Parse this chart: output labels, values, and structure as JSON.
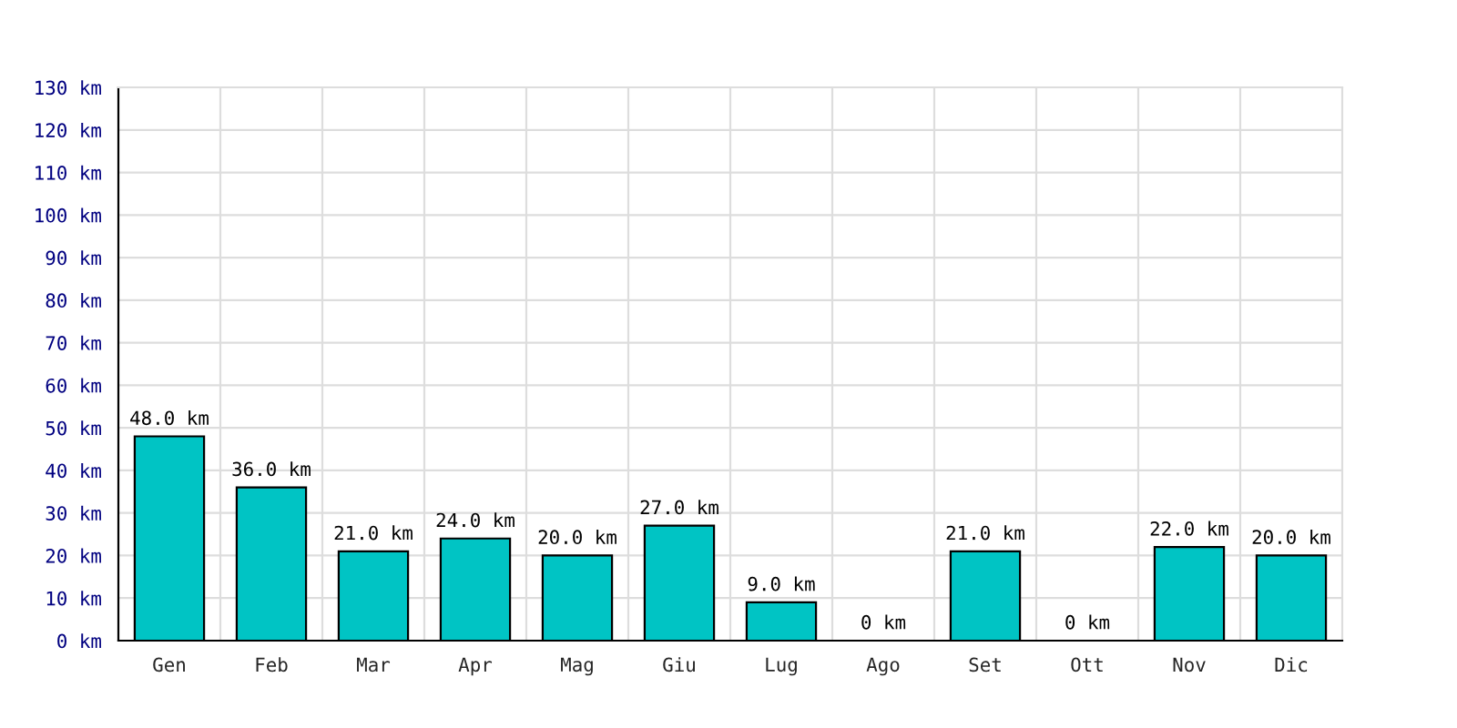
{
  "chart_data": {
    "type": "bar",
    "categories": [
      "Gen",
      "Feb",
      "Mar",
      "Apr",
      "Mag",
      "Giu",
      "Lug",
      "Ago",
      "Set",
      "Ott",
      "Nov",
      "Dic"
    ],
    "values": [
      48,
      36,
      21,
      24,
      20,
      27,
      9,
      0,
      21,
      0,
      22,
      20
    ],
    "value_labels": [
      "48.0 km",
      "36.0 km",
      "21.0 km",
      "24.0 km",
      "20.0 km",
      "27.0 km",
      "9.0 km",
      "0 km",
      "21.0 km",
      "0 km",
      "22.0 km",
      "20.0 km"
    ],
    "color": "#00c4c4",
    "ylim": [
      0,
      130
    ],
    "yticks": [
      {
        "value": 0,
        "label": "0 km"
      },
      {
        "value": 10,
        "label": "10 km"
      },
      {
        "value": 20,
        "label": "20 km"
      },
      {
        "value": 30,
        "label": "30 km"
      },
      {
        "value": 40,
        "label": "40 km"
      },
      {
        "value": 50,
        "label": "50 km"
      },
      {
        "value": 60,
        "label": "60 km"
      },
      {
        "value": 70,
        "label": "70 km"
      },
      {
        "value": 80,
        "label": "80 km"
      },
      {
        "value": 90,
        "label": "90 km"
      },
      {
        "value": 100,
        "label": "100 km"
      },
      {
        "value": 110,
        "label": "110 km"
      },
      {
        "value": 120,
        "label": "120 km"
      },
      {
        "value": 130,
        "label": "130 km"
      }
    ],
    "grid": true
  }
}
